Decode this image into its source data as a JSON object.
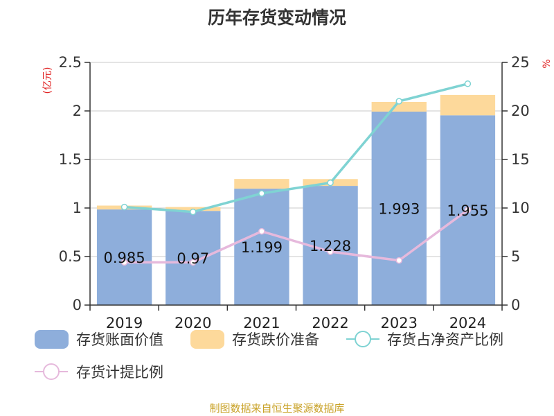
{
  "chart_data": {
    "type": "bar",
    "title": "历年存货变动情况",
    "categories": [
      "2019",
      "2020",
      "2021",
      "2022",
      "2023",
      "2024"
    ],
    "series": [
      {
        "name": "存货账面价值",
        "kind": "bar-stack",
        "axis": "left",
        "values": [
          0.985,
          0.97,
          1.199,
          1.228,
          1.993,
          1.955
        ],
        "labels": [
          "0.985",
          "0.97",
          "1.199",
          "1.228",
          "1.993",
          "1.955"
        ]
      },
      {
        "name": "存货跌价准备",
        "kind": "bar-stack",
        "axis": "left",
        "values": [
          0.04,
          0.04,
          0.1,
          0.07,
          0.1,
          0.21
        ]
      },
      {
        "name": "存货占净资产比例",
        "kind": "line",
        "axis": "right",
        "values": [
          10.1,
          9.6,
          11.5,
          12.6,
          21.0,
          22.8
        ]
      },
      {
        "name": "存货计提比例",
        "kind": "line",
        "axis": "right",
        "values": [
          4.4,
          4.4,
          7.6,
          5.5,
          4.6,
          9.8
        ]
      }
    ],
    "y_left": {
      "unit_label": "(亿元)",
      "ticks": [
        "0",
        "0.5",
        "1",
        "1.5",
        "2",
        "2.5"
      ],
      "ylim": [
        0,
        2.5
      ]
    },
    "y_right": {
      "unit_label": "%",
      "ticks": [
        "0",
        "5",
        "10",
        "15",
        "20",
        "25"
      ],
      "ylim": [
        0,
        25
      ]
    },
    "grid": true,
    "legend_position": "bottom-left"
  },
  "source": "制图数据来自恒生聚源数据库",
  "colors": {
    "bar_value": "#8eaedb",
    "bar_reserve": "#fdd99b",
    "line_ratio": "#7fd3d3",
    "line_provision": "#e6b9dc",
    "unit_text": "#e02020",
    "source_text": "#c9a227",
    "axis": "#333333",
    "grid": "#c8c8c8"
  }
}
